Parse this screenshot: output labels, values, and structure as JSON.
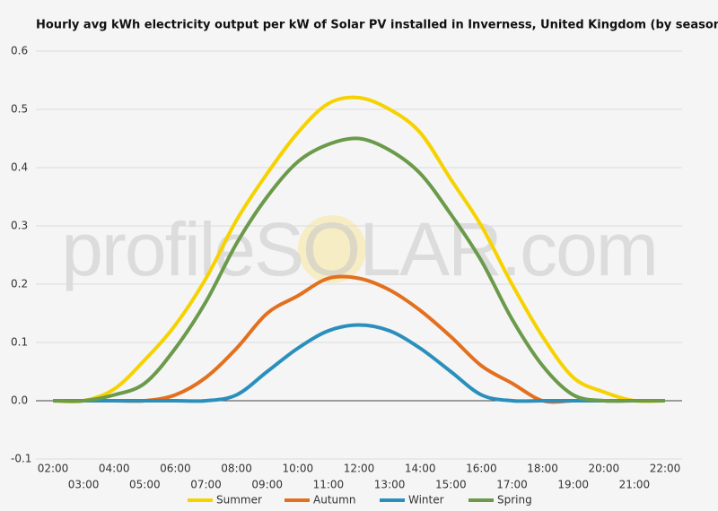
{
  "chart_data": {
    "type": "line",
    "title": "Hourly avg kWh electricity output per kW of Solar PV installed in Inverness, United Kingdom (by season)",
    "watermark": "profileSOLAR.com",
    "categories": [
      "02:00",
      "03:00",
      "04:00",
      "05:00",
      "06:00",
      "07:00",
      "08:00",
      "09:00",
      "10:00",
      "11:00",
      "12:00",
      "13:00",
      "14:00",
      "15:00",
      "16:00",
      "17:00",
      "18:00",
      "19:00",
      "20:00",
      "21:00",
      "22:00"
    ],
    "series": [
      {
        "name": "Summer",
        "color": "#f6d200",
        "values": [
          0,
          0,
          0.02,
          0.07,
          0.13,
          0.21,
          0.31,
          0.39,
          0.46,
          0.51,
          0.52,
          0.5,
          0.46,
          0.38,
          0.3,
          0.2,
          0.11,
          0.04,
          0.015,
          0,
          0
        ]
      },
      {
        "name": "Autumn",
        "color": "#e2701f",
        "values": [
          0,
          0,
          0,
          0,
          0.01,
          0.04,
          0.09,
          0.15,
          0.18,
          0.21,
          0.21,
          0.19,
          0.155,
          0.11,
          0.06,
          0.03,
          0,
          0,
          0,
          0,
          0
        ]
      },
      {
        "name": "Winter",
        "color": "#2b8fbd",
        "values": [
          0,
          0,
          0,
          0,
          0,
          0,
          0.01,
          0.05,
          0.09,
          0.12,
          0.13,
          0.12,
          0.09,
          0.05,
          0.01,
          0,
          0,
          0,
          0,
          0,
          0
        ]
      },
      {
        "name": "Spring",
        "color": "#6b9a4b",
        "values": [
          0,
          0,
          0.01,
          0.03,
          0.09,
          0.17,
          0.27,
          0.35,
          0.41,
          0.44,
          0.45,
          0.43,
          0.39,
          0.32,
          0.24,
          0.14,
          0.06,
          0.01,
          0,
          0,
          0
        ]
      }
    ],
    "ylim": [
      -0.1,
      0.6
    ],
    "yticks": [
      -0.1,
      {
        "value": 0,
        "label": "0.0"
      },
      0.1,
      0.2,
      0.3,
      0.4,
      0.5,
      0.6
    ],
    "grid": true,
    "legend": "bottom"
  }
}
